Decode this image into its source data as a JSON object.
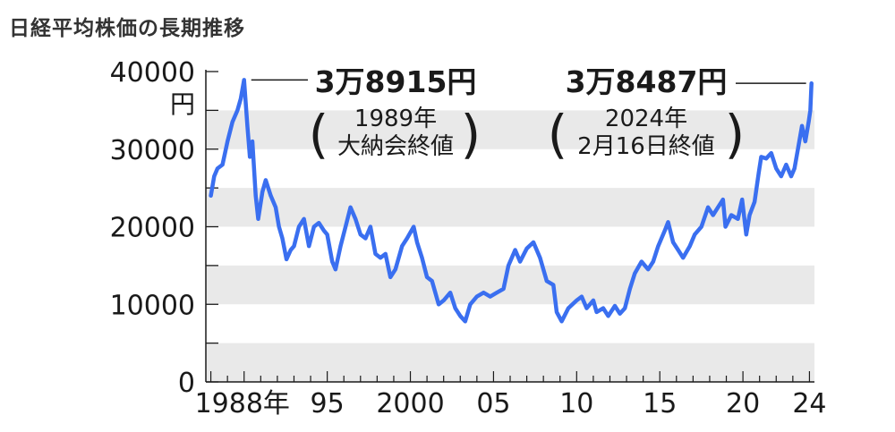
{
  "title": "日経平均株価の長期推移",
  "colors": {
    "line": "#3a6ff0",
    "band": "#e9e9e9",
    "axis": "#1a1a1a"
  },
  "chart_data": {
    "type": "line",
    "title": "日経平均株価の長期推移",
    "unit": "円",
    "xlabel": "",
    "ylabel": "",
    "xlim": [
      1987.7,
      2024.3
    ],
    "ylim": [
      0,
      40000
    ],
    "grid": "alternating horizontal bands",
    "y_ticks": [
      {
        "value": 40000,
        "label": "40000"
      },
      {
        "value": 30000,
        "label": "30000"
      },
      {
        "value": 20000,
        "label": "20000"
      },
      {
        "value": 10000,
        "label": "10000"
      },
      {
        "value": 0,
        "label": "0"
      }
    ],
    "x_ticks": [
      {
        "value": 1988,
        "label": "1988年"
      },
      {
        "value": 1995,
        "label": "95"
      },
      {
        "value": 2000,
        "label": "2000"
      },
      {
        "value": 2005,
        "label": "05"
      },
      {
        "value": 2010,
        "label": "10"
      },
      {
        "value": 2015,
        "label": "15"
      },
      {
        "value": 2020,
        "label": "20"
      },
      {
        "value": 2024,
        "label": "24"
      }
    ],
    "series": [
      {
        "points": [
          [
            1988.0,
            24000
          ],
          [
            1988.2,
            26500
          ],
          [
            1988.4,
            27500
          ],
          [
            1988.7,
            28000
          ],
          [
            1989.0,
            31000
          ],
          [
            1989.3,
            33500
          ],
          [
            1989.6,
            35000
          ],
          [
            1989.8,
            36500
          ],
          [
            1990.0,
            38915
          ],
          [
            1990.2,
            33000
          ],
          [
            1990.35,
            29000
          ],
          [
            1990.5,
            31000
          ],
          [
            1990.7,
            24000
          ],
          [
            1990.85,
            21000
          ],
          [
            1991.1,
            24500
          ],
          [
            1991.3,
            26000
          ],
          [
            1991.6,
            24000
          ],
          [
            1991.9,
            22500
          ],
          [
            1992.1,
            20000
          ],
          [
            1992.3,
            18500
          ],
          [
            1992.55,
            15800
          ],
          [
            1992.8,
            17000
          ],
          [
            1993.0,
            17500
          ],
          [
            1993.3,
            20000
          ],
          [
            1993.6,
            21000
          ],
          [
            1993.9,
            17500
          ],
          [
            1994.2,
            20000
          ],
          [
            1994.5,
            20500
          ],
          [
            1994.8,
            19500
          ],
          [
            1995.0,
            19000
          ],
          [
            1995.3,
            15500
          ],
          [
            1995.5,
            14500
          ],
          [
            1995.8,
            17500
          ],
          [
            1996.1,
            20000
          ],
          [
            1996.4,
            22500
          ],
          [
            1996.7,
            21000
          ],
          [
            1997.0,
            19000
          ],
          [
            1997.3,
            18500
          ],
          [
            1997.6,
            20000
          ],
          [
            1997.9,
            16500
          ],
          [
            1998.2,
            16000
          ],
          [
            1998.5,
            16500
          ],
          [
            1998.8,
            13500
          ],
          [
            1999.1,
            14500
          ],
          [
            1999.5,
            17500
          ],
          [
            1999.8,
            18500
          ],
          [
            2000.2,
            20000
          ],
          [
            2000.4,
            18000
          ],
          [
            2000.7,
            16000
          ],
          [
            2001.0,
            13500
          ],
          [
            2001.3,
            13000
          ],
          [
            2001.7,
            10000
          ],
          [
            2002.0,
            10500
          ],
          [
            2002.4,
            11500
          ],
          [
            2002.7,
            9500
          ],
          [
            2003.0,
            8500
          ],
          [
            2003.3,
            7800
          ],
          [
            2003.6,
            10000
          ],
          [
            2004.0,
            11000
          ],
          [
            2004.4,
            11500
          ],
          [
            2004.8,
            11000
          ],
          [
            2005.2,
            11500
          ],
          [
            2005.6,
            12000
          ],
          [
            2005.9,
            15000
          ],
          [
            2006.3,
            17000
          ],
          [
            2006.6,
            15500
          ],
          [
            2007.0,
            17200
          ],
          [
            2007.4,
            18000
          ],
          [
            2007.8,
            16000
          ],
          [
            2008.2,
            13000
          ],
          [
            2008.6,
            12500
          ],
          [
            2008.8,
            9000
          ],
          [
            2009.1,
            7800
          ],
          [
            2009.5,
            9500
          ],
          [
            2010.0,
            10500
          ],
          [
            2010.3,
            11000
          ],
          [
            2010.6,
            9500
          ],
          [
            2011.0,
            10500
          ],
          [
            2011.2,
            9000
          ],
          [
            2011.6,
            9500
          ],
          [
            2011.9,
            8500
          ],
          [
            2012.3,
            9800
          ],
          [
            2012.6,
            8800
          ],
          [
            2012.9,
            9500
          ],
          [
            2013.2,
            12000
          ],
          [
            2013.5,
            14000
          ],
          [
            2013.9,
            15500
          ],
          [
            2014.3,
            14500
          ],
          [
            2014.6,
            15500
          ],
          [
            2014.9,
            17500
          ],
          [
            2015.3,
            19500
          ],
          [
            2015.5,
            20600
          ],
          [
            2015.8,
            18000
          ],
          [
            2016.1,
            17000
          ],
          [
            2016.4,
            16000
          ],
          [
            2016.8,
            17500
          ],
          [
            2017.1,
            19000
          ],
          [
            2017.5,
            20000
          ],
          [
            2017.9,
            22500
          ],
          [
            2018.2,
            21500
          ],
          [
            2018.5,
            22500
          ],
          [
            2018.8,
            23500
          ],
          [
            2018.95,
            20000
          ],
          [
            2019.3,
            21500
          ],
          [
            2019.7,
            21000
          ],
          [
            2019.95,
            23500
          ],
          [
            2020.2,
            19000
          ],
          [
            2020.4,
            21500
          ],
          [
            2020.7,
            23200
          ],
          [
            2020.95,
            27000
          ],
          [
            2021.1,
            29000
          ],
          [
            2021.4,
            28800
          ],
          [
            2021.7,
            29500
          ],
          [
            2022.0,
            27500
          ],
          [
            2022.3,
            26500
          ],
          [
            2022.6,
            28000
          ],
          [
            2022.9,
            26500
          ],
          [
            2023.1,
            27500
          ],
          [
            2023.35,
            30500
          ],
          [
            2023.55,
            33000
          ],
          [
            2023.75,
            31000
          ],
          [
            2023.95,
            33500
          ],
          [
            2024.05,
            35000
          ],
          [
            2024.12,
            38487
          ]
        ]
      }
    ],
    "annotations": [
      {
        "value": "3万8915円",
        "date": "1989年",
        "desc": "大納会終値",
        "x": 1990.0,
        "y": 38915
      },
      {
        "value": "3万8487円",
        "date": "2024年",
        "desc": "2月16日終値",
        "x": 2024.12,
        "y": 38487
      }
    ]
  }
}
